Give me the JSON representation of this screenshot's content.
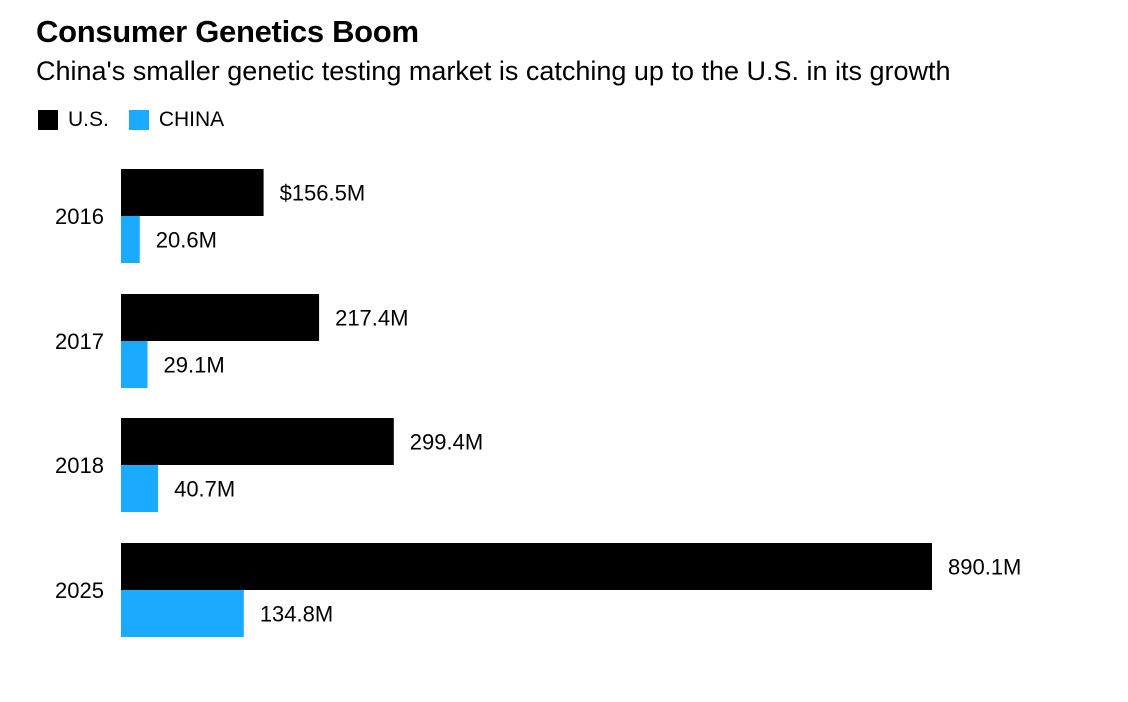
{
  "chart_data": {
    "type": "bar",
    "orientation": "horizontal",
    "title": "Consumer Genetics Boom",
    "subtitle": "China's smaller genetic testing market is catching up to the U.S. in its growth",
    "categories": [
      "2016",
      "2017",
      "2018",
      "2025"
    ],
    "series": [
      {
        "name": "U.S.",
        "color": "#000000",
        "values": [
          156.5,
          217.4,
          299.4,
          890.1
        ],
        "labels": [
          "$156.5M",
          "217.4M",
          "299.4M",
          "890.1M"
        ]
      },
      {
        "name": "CHINA",
        "color": "#1aabff",
        "values": [
          20.6,
          29.1,
          40.7,
          134.8
        ],
        "labels": [
          "20.6M",
          "29.1M",
          "40.7M",
          "134.8M"
        ]
      }
    ],
    "xlim": [
      0,
      890.1
    ],
    "grid": false,
    "legend": "top-left"
  }
}
